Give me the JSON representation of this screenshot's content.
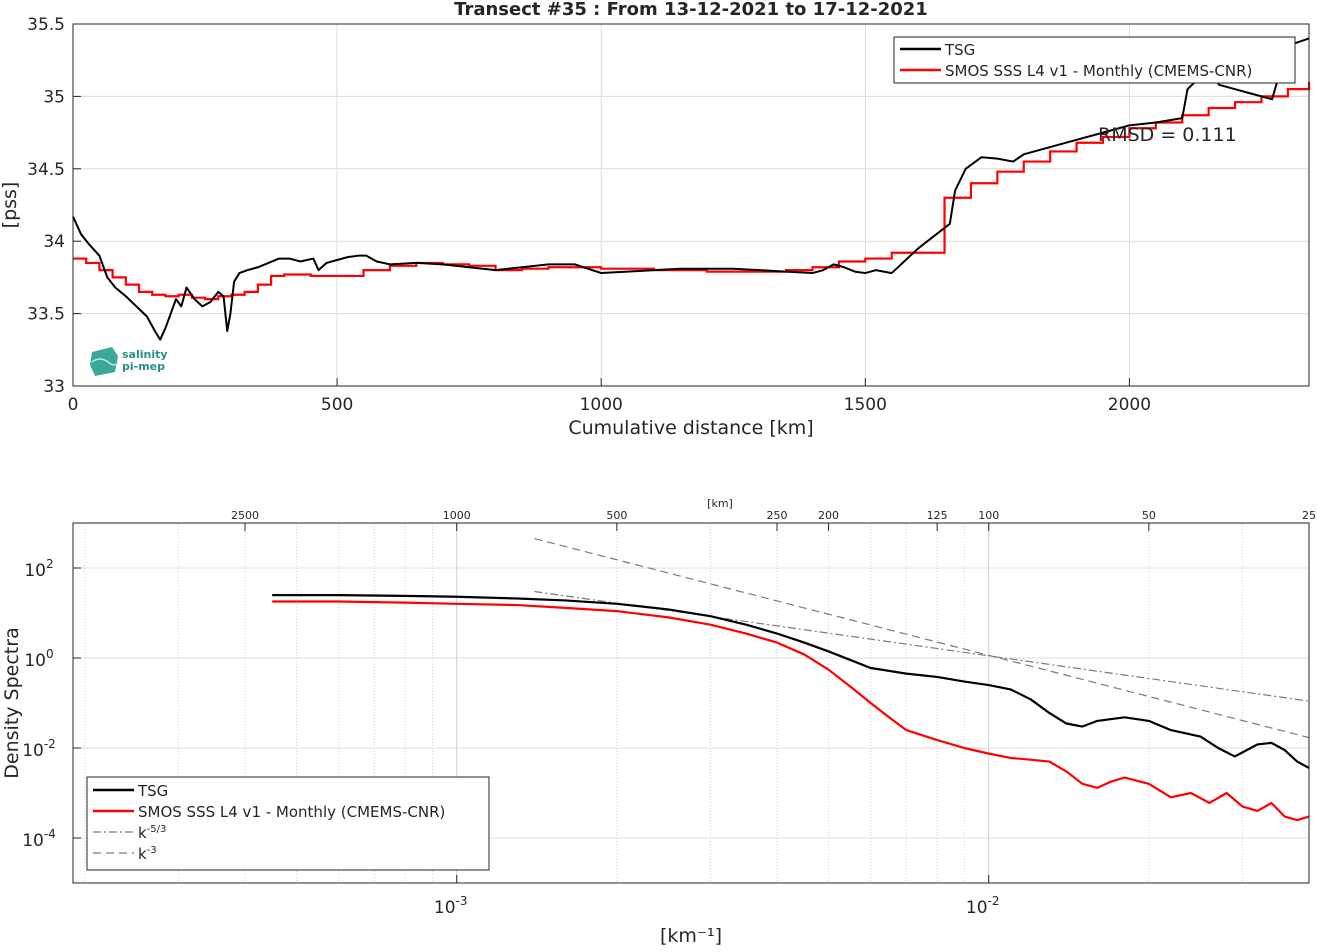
{
  "chart_data": [
    {
      "type": "line",
      "title": "Transect #35 : From 13-12-2021 to 17-12-2021",
      "xlabel": "Cumulative distance [km]",
      "ylabel": "[pss]",
      "xlim": [
        0,
        2340
      ],
      "ylim": [
        33,
        35.5
      ],
      "xticks": [
        0,
        500,
        1000,
        1500,
        2000
      ],
      "xtick_labels": [
        "0",
        "500",
        "1000",
        "1500",
        "2000"
      ],
      "yticks": [
        33,
        33.5,
        34,
        34.5,
        35,
        35.5
      ],
      "ytick_labels": [
        "33",
        "33.5",
        "34",
        "34.5",
        "35",
        "35.5"
      ],
      "grid": true,
      "legend_position": "top-right",
      "annotation": "RMSD = 0.111",
      "logo_text": [
        "salinity",
        "pi-mep"
      ],
      "series": [
        {
          "name": "TSG",
          "color": "#000000",
          "x": [
            0,
            15,
            30,
            50,
            65,
            80,
            100,
            120,
            140,
            155,
            165,
            175,
            185,
            195,
            205,
            215,
            230,
            245,
            260,
            275,
            285,
            292,
            298,
            305,
            315,
            330,
            350,
            370,
            390,
            410,
            430,
            455,
            465,
            480,
            500,
            520,
            540,
            555,
            575,
            600,
            650,
            700,
            750,
            800,
            850,
            900,
            950,
            1000,
            1050,
            1100,
            1150,
            1200,
            1250,
            1300,
            1350,
            1400,
            1420,
            1440,
            1460,
            1480,
            1500,
            1520,
            1535,
            1550,
            1600,
            1660,
            1670,
            1690,
            1720,
            1750,
            1780,
            1800,
            1850,
            1900,
            1950,
            2000,
            2050,
            2100,
            2110,
            2130,
            2150,
            2170,
            2200,
            2230,
            2270,
            2300,
            2340
          ],
          "y": [
            34.17,
            34.05,
            33.98,
            33.9,
            33.75,
            33.68,
            33.62,
            33.55,
            33.48,
            33.38,
            33.32,
            33.4,
            33.5,
            33.6,
            33.55,
            33.68,
            33.6,
            33.55,
            33.58,
            33.65,
            33.62,
            33.38,
            33.5,
            33.72,
            33.78,
            33.8,
            33.82,
            33.85,
            33.88,
            33.88,
            33.86,
            33.88,
            33.8,
            33.85,
            33.87,
            33.89,
            33.9,
            33.9,
            33.86,
            33.84,
            33.85,
            33.84,
            33.82,
            33.8,
            33.82,
            33.84,
            33.84,
            33.78,
            33.79,
            33.8,
            33.81,
            33.81,
            33.81,
            33.8,
            33.79,
            33.78,
            33.8,
            33.84,
            33.82,
            33.79,
            33.78,
            33.8,
            33.79,
            33.78,
            33.95,
            34.12,
            34.35,
            34.5,
            34.58,
            34.57,
            34.55,
            34.6,
            34.65,
            34.7,
            34.75,
            34.8,
            34.82,
            34.85,
            35.05,
            35.12,
            35.18,
            35.08,
            35.05,
            35.02,
            34.98,
            35.35,
            35.4
          ]
        },
        {
          "name": "SMOS SSS L4 v1 - Monthly (CMEMS-CNR)",
          "color": "#ff0000",
          "x": [
            0,
            25,
            50,
            75,
            100,
            125,
            150,
            175,
            200,
            225,
            250,
            275,
            300,
            325,
            350,
            375,
            400,
            450,
            500,
            550,
            600,
            650,
            700,
            750,
            800,
            850,
            900,
            950,
            1000,
            1050,
            1100,
            1150,
            1200,
            1250,
            1300,
            1350,
            1400,
            1450,
            1500,
            1550,
            1650,
            1700,
            1750,
            1800,
            1850,
            1900,
            1950,
            2000,
            2050,
            2100,
            2150,
            2200,
            2250,
            2300,
            2340
          ],
          "y": [
            33.88,
            33.85,
            33.8,
            33.75,
            33.7,
            33.65,
            33.63,
            33.62,
            33.63,
            33.61,
            33.6,
            33.62,
            33.63,
            33.65,
            33.7,
            33.76,
            33.77,
            33.76,
            33.76,
            33.8,
            33.83,
            33.85,
            33.84,
            33.83,
            33.8,
            33.81,
            33.82,
            33.82,
            33.81,
            33.81,
            33.8,
            33.8,
            33.79,
            33.79,
            33.79,
            33.8,
            33.82,
            33.86,
            33.88,
            33.92,
            34.3,
            34.4,
            34.48,
            34.55,
            34.62,
            34.68,
            34.72,
            34.78,
            34.82,
            34.87,
            34.92,
            34.96,
            35.0,
            35.05,
            35.1
          ]
        }
      ]
    },
    {
      "type": "line",
      "xlabel": "[km⁻¹]",
      "ylabel": "Density Spectra",
      "x_scale": "log",
      "y_scale": "log",
      "xlim": [
        0.00019,
        0.04
      ],
      "ylim": [
        1e-05,
        1000
      ],
      "xticks": [
        0.001,
        0.01
      ],
      "xtick_labels_base": [
        "10",
        "10"
      ],
      "xtick_labels_exp": [
        "-3",
        "-2"
      ],
      "yticks": [
        0.0001,
        0.01,
        1,
        100
      ],
      "ytick_labels_base": [
        "10",
        "10",
        "10",
        "10"
      ],
      "ytick_labels_exp": [
        "-4",
        "-2",
        "0",
        "2"
      ],
      "top_axis_label": "[km]",
      "top_axis_ticks_km": [
        2500,
        1000,
        500,
        250,
        200,
        125,
        100,
        50,
        25
      ],
      "top_axis_tick_labels": [
        "2500",
        "1000",
        "500",
        "250",
        "200",
        "125",
        "100",
        "50",
        "25"
      ],
      "grid": true,
      "legend_position": "bottom-left",
      "series": [
        {
          "name": "TSG",
          "color": "#000000",
          "x": [
            0.00045,
            0.0006,
            0.0008,
            0.001,
            0.0013,
            0.0016,
            0.002,
            0.0025,
            0.003,
            0.0035,
            0.004,
            0.0045,
            0.005,
            0.0055,
            0.006,
            0.007,
            0.008,
            0.009,
            0.01,
            0.011,
            0.012,
            0.013,
            0.014,
            0.015,
            0.016,
            0.018,
            0.02,
            0.022,
            0.025,
            0.027,
            0.029,
            0.03,
            0.032,
            0.034,
            0.036,
            0.038,
            0.04
          ],
          "y": [
            25,
            25,
            24,
            23,
            21,
            19,
            16,
            12,
            8.5,
            5.5,
            3.5,
            2.2,
            1.4,
            0.9,
            0.6,
            0.45,
            0.38,
            0.3,
            0.25,
            0.2,
            0.12,
            0.06,
            0.035,
            0.03,
            0.04,
            0.048,
            0.04,
            0.025,
            0.018,
            0.01,
            0.0065,
            0.008,
            0.012,
            0.013,
            0.009,
            0.005,
            0.0036
          ]
        },
        {
          "name": "SMOS SSS L4 v1 - Monthly (CMEMS-CNR)",
          "color": "#ff0000",
          "x": [
            0.00045,
            0.0006,
            0.0008,
            0.001,
            0.0013,
            0.0016,
            0.002,
            0.0025,
            0.003,
            0.0035,
            0.004,
            0.0045,
            0.005,
            0.0055,
            0.006,
            0.0065,
            0.007,
            0.008,
            0.009,
            0.01,
            0.011,
            0.012,
            0.013,
            0.014,
            0.015,
            0.016,
            0.017,
            0.018,
            0.02,
            0.022,
            0.024,
            0.026,
            0.028,
            0.03,
            0.032,
            0.034,
            0.036,
            0.038,
            0.04
          ],
          "y": [
            18,
            18,
            17,
            16,
            15,
            13,
            11,
            8,
            5.5,
            3.5,
            2.2,
            1.2,
            0.55,
            0.23,
            0.1,
            0.048,
            0.025,
            0.015,
            0.01,
            0.0075,
            0.006,
            0.0055,
            0.005,
            0.003,
            0.0016,
            0.0013,
            0.0018,
            0.0022,
            0.0016,
            0.0008,
            0.001,
            0.0006,
            0.001,
            0.0005,
            0.0004,
            0.0006,
            0.0003,
            0.00025,
            0.0003
          ]
        },
        {
          "name": "k⁻⁵⁄³",
          "style": "dash-dot",
          "color": "#7a7a7a",
          "x": [
            0.0014,
            0.04
          ],
          "y": [
            30,
            0.11
          ]
        },
        {
          "name": "k⁻³",
          "style": "dashed",
          "color": "#7a7a7a",
          "x": [
            0.0014,
            0.04
          ],
          "y": [
            450,
            0.017
          ]
        }
      ],
      "legend_entries": [
        {
          "label": "TSG",
          "sup": ""
        },
        {
          "label": "SMOS SSS L4 v1 - Monthly (CMEMS-CNR)",
          "sup": ""
        },
        {
          "label": "k",
          "sup": "-5/3"
        },
        {
          "label": "k",
          "sup": "-3"
        }
      ]
    }
  ]
}
